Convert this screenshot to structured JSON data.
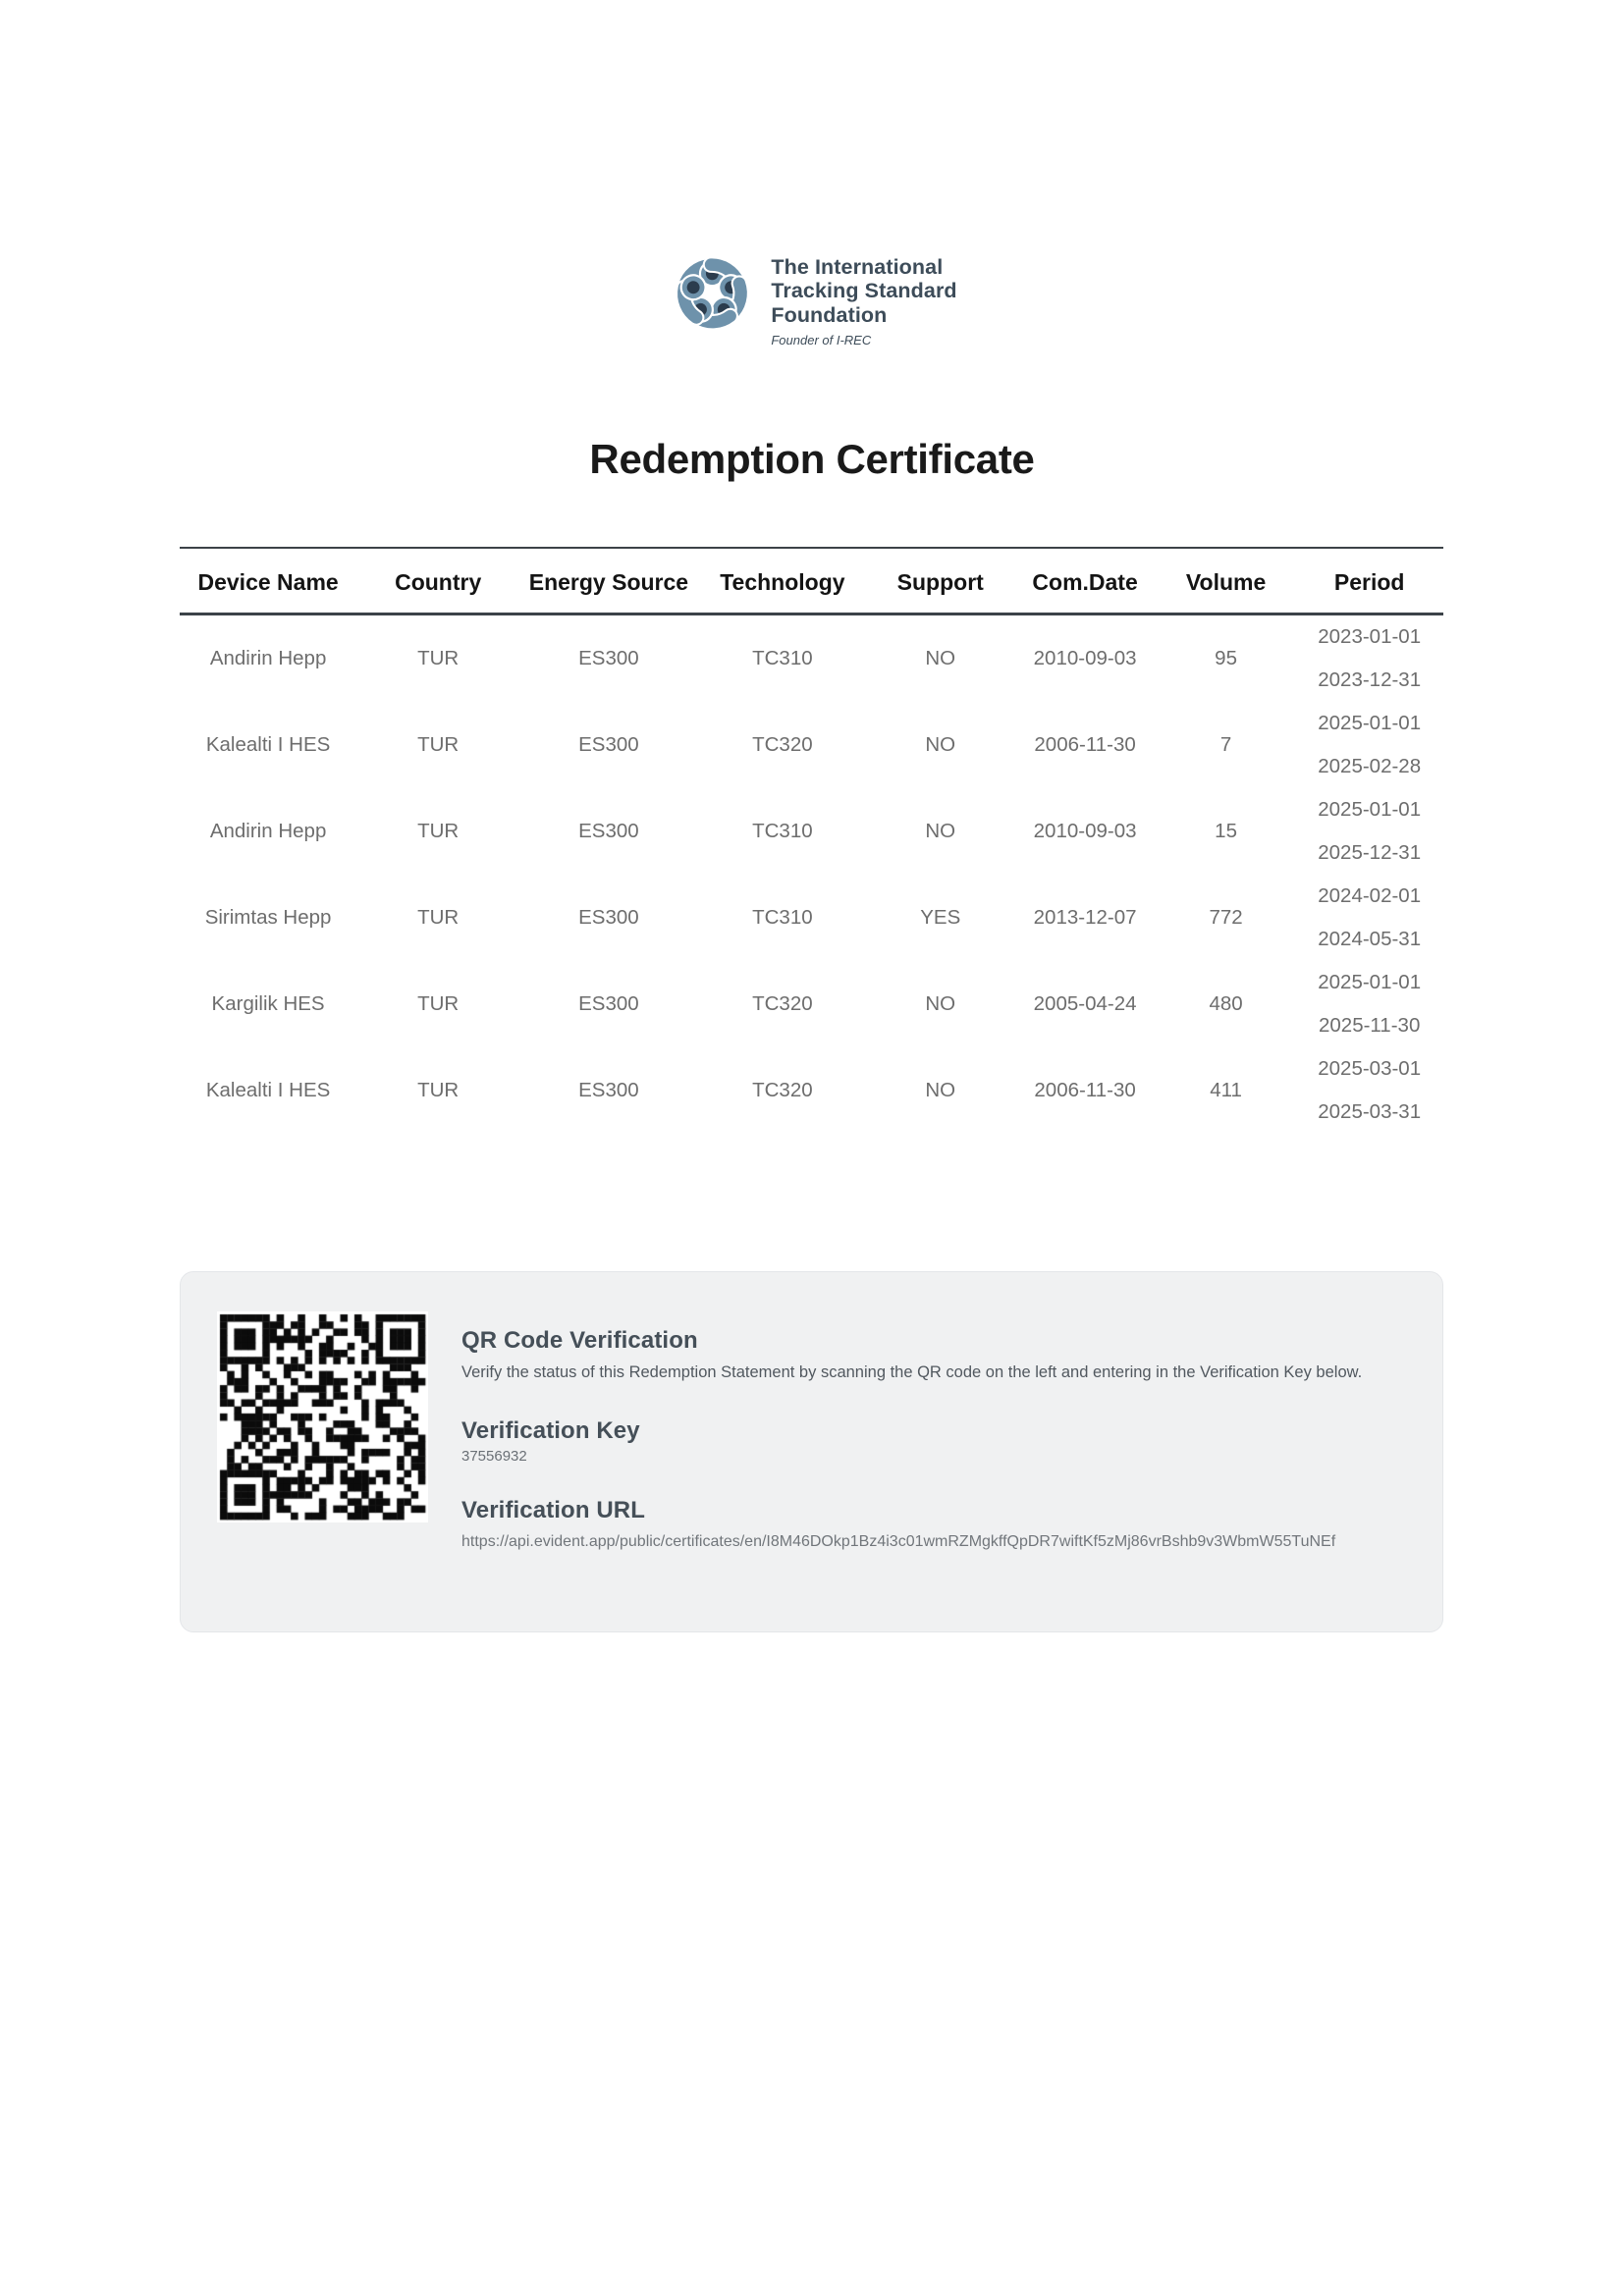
{
  "logo": {
    "line1": "The International",
    "line2": "Tracking Standard",
    "line3": "Foundation",
    "tagline": "Founder of I-REC"
  },
  "title": "Redemption Certificate",
  "table": {
    "columns": [
      "Device Name",
      "Country",
      "Energy Source",
      "Technology",
      "Support",
      "Com.Date",
      "Volume",
      "Period"
    ],
    "rows": [
      {
        "device": "Andirin Hepp",
        "country": "TUR",
        "energy_source": "ES300",
        "technology": "TC310",
        "support": "NO",
        "com_date": "2010-09-03",
        "volume": "95",
        "period_start": "2023-01-01",
        "period_end": "2023-12-31"
      },
      {
        "device": "Kalealti I HES",
        "country": "TUR",
        "energy_source": "ES300",
        "technology": "TC320",
        "support": "NO",
        "com_date": "2006-11-30",
        "volume": "7",
        "period_start": "2025-01-01",
        "period_end": "2025-02-28"
      },
      {
        "device": "Andirin Hepp",
        "country": "TUR",
        "energy_source": "ES300",
        "technology": "TC310",
        "support": "NO",
        "com_date": "2010-09-03",
        "volume": "15",
        "period_start": "2025-01-01",
        "period_end": "2025-12-31"
      },
      {
        "device": "Sirimtas Hepp",
        "country": "TUR",
        "energy_source": "ES300",
        "technology": "TC310",
        "support": "YES",
        "com_date": "2013-12-07",
        "volume": "772",
        "period_start": "2024-02-01",
        "period_end": "2024-05-31"
      },
      {
        "device": "Kargilik HES",
        "country": "TUR",
        "energy_source": "ES300",
        "technology": "TC320",
        "support": "NO",
        "com_date": "2005-04-24",
        "volume": "480",
        "period_start": "2025-01-01",
        "period_end": "2025-11-30"
      },
      {
        "device": "Kalealti I HES",
        "country": "TUR",
        "energy_source": "ES300",
        "technology": "TC320",
        "support": "NO",
        "com_date": "2006-11-30",
        "volume": "411",
        "period_start": "2025-03-01",
        "period_end": "2025-03-31"
      }
    ]
  },
  "verification": {
    "qr_heading": "QR Code Verification",
    "qr_description": "Verify the status of this Redemption Statement by scanning the QR code on the left and entering in the Verification Key below.",
    "key_heading": "Verification Key",
    "key_value": "37556932",
    "url_heading": "Verification URL",
    "url_value": "https://api.evident.app/public/certificates/en/I8M46DOkp1Bz4i3c01wmRZMgkffQpDR7wiftKf5zMj86vrBshb9v3WbmW55TuNEf"
  },
  "colors": {
    "logo_blue": "#6E92AB",
    "logo_dark": "#2B3C4D",
    "logo_text": "#3D4C59",
    "title_black": "#1A1A1A",
    "table_head": "#141414",
    "body_gray": "#6D6D6D",
    "border_dark": "#3C4248",
    "heading_dark": "#454F58",
    "box_bg": "#F0F1F2",
    "qr_black": "#0B0B0B"
  }
}
